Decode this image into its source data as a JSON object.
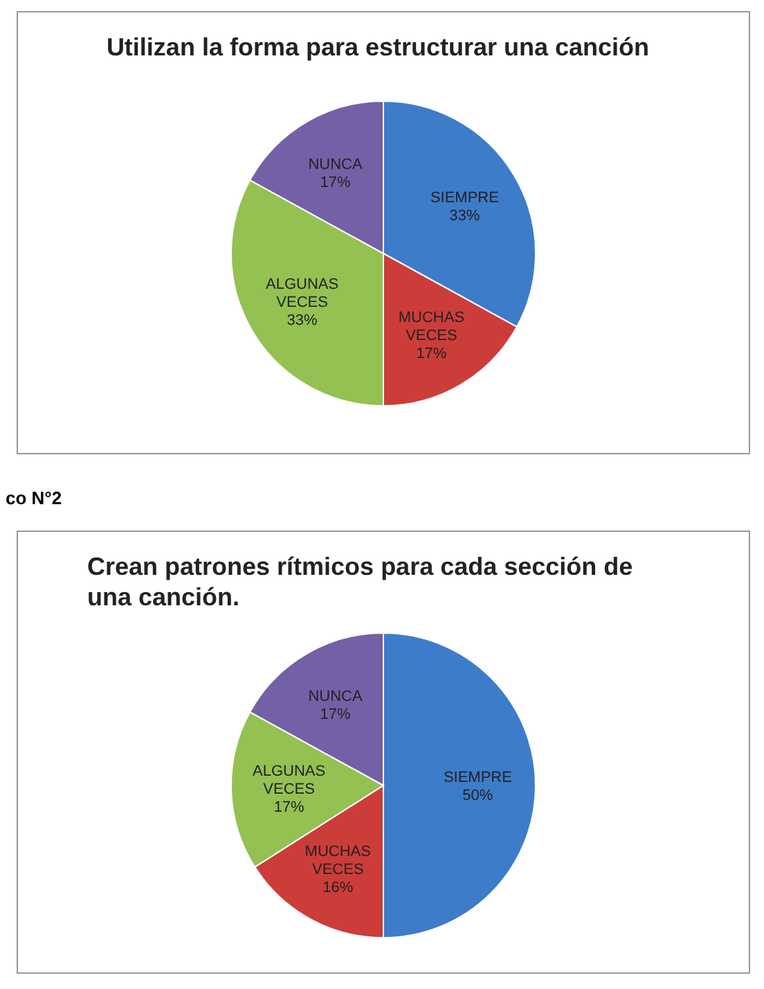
{
  "chart_data": [
    {
      "type": "pie",
      "title": "Utilizan la forma para estructurar una canción",
      "categories": [
        "SIEMPRE",
        "MUCHAS VECES",
        "ALGUNAS VECES",
        "NUNCA"
      ],
      "values": [
        33,
        17,
        33,
        17
      ],
      "value_labels": [
        "33%",
        "17%",
        "33%",
        "17%"
      ],
      "colors": [
        "#3d7cc9",
        "#cc3d3a",
        "#94c152",
        "#7460a6"
      ]
    },
    {
      "type": "pie",
      "title": "Crean patrones rítmicos para cada sección de una canción.",
      "annotations": [
        "co N°2"
      ],
      "categories": [
        "SIEMPRE",
        "MUCHAS VECES",
        "ALGUNAS VECES",
        "NUNCA"
      ],
      "values": [
        50,
        16,
        17,
        17
      ],
      "value_labels": [
        "50%",
        "16%",
        "17%",
        "17%"
      ],
      "colors": [
        "#3d7cc9",
        "#cc3d3a",
        "#94c152",
        "#7460a6"
      ]
    }
  ]
}
